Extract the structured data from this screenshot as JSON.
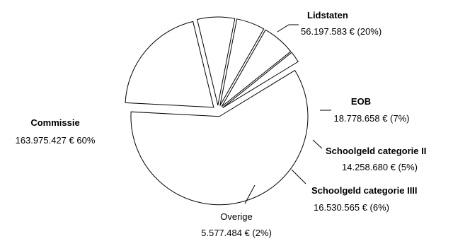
{
  "chart_data": {
    "type": "pie",
    "title": "",
    "slices": [
      {
        "name": "Lidstaten",
        "value": "56.197.583 € (20%)",
        "share": 20.3
      },
      {
        "name": "EOB",
        "value": "18.778.658 € (7%)",
        "share": 6.8
      },
      {
        "name": "Schoolgeld categorie II",
        "value": "14.258.680 € (5%)",
        "share": 5.1
      },
      {
        "name": "Schoolgeld categorie IIII",
        "value": "16.530.565 € (6%)",
        "share": 6.0
      },
      {
        "name": "Overige",
        "value": "5.577.484 € (2%)",
        "share": 2.0
      },
      {
        "name": "Commissie",
        "value": "163.975.427 € 60%",
        "share": 59.8
      }
    ],
    "amounts": [
      56197583,
      18778658,
      14258680,
      16530565,
      5577484,
      163975427
    ],
    "legend": "none",
    "exploded": true
  }
}
